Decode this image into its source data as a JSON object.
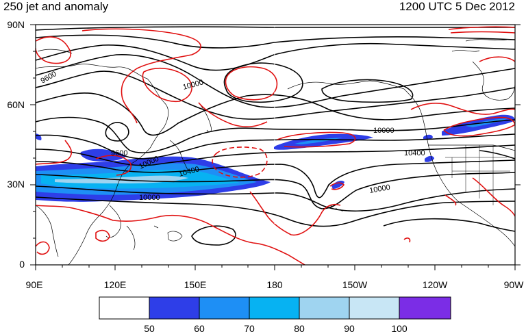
{
  "title": {
    "left": "250 jet and anomaly",
    "right": "1200 UTC 5 Dec 2012"
  },
  "axes": {
    "y_ticks": [
      "90N",
      "60N",
      "30N",
      "0"
    ],
    "x_ticks": [
      "90E",
      "120E",
      "150E",
      "180",
      "150W",
      "120W",
      "90W"
    ]
  },
  "contour_labels": [
    "9600",
    "10000",
    "9600",
    "10000",
    "10400",
    "10000",
    "10000",
    "10400",
    "10000"
  ],
  "colorbar": {
    "labels": [
      "50",
      "60",
      "70",
      "80",
      "90",
      "100"
    ],
    "colors": [
      "#ffffff",
      "#2e3ee8",
      "#1e8ff5",
      "#07b2f2",
      "#9fd4f0",
      "#c8e6f5",
      "#7b2de6"
    ]
  },
  "colors": {
    "height_contours": "#000000",
    "anomaly_contours": "#e01010",
    "coastline": "#000000"
  }
}
